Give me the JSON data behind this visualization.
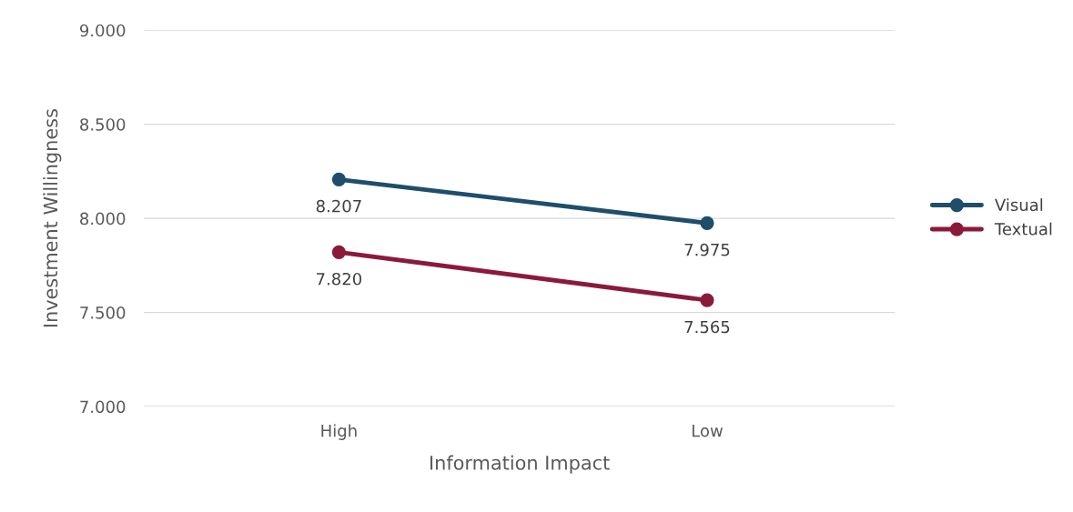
{
  "chart_data": {
    "type": "line",
    "xlabel": "Information Impact",
    "ylabel": "Investment Willingness",
    "categories": [
      "High",
      "Low"
    ],
    "series": [
      {
        "name": "Visual",
        "color": "#1f4e6b",
        "values": [
          8.207,
          7.975
        ],
        "value_labels": [
          "8.207",
          "7.975"
        ]
      },
      {
        "name": "Textual",
        "color": "#8b1a3a",
        "values": [
          7.82,
          7.565
        ],
        "value_labels": [
          "7.820",
          "7.565"
        ]
      }
    ],
    "ylim": [
      7,
      9
    ],
    "yticks": [
      {
        "value": 7,
        "label": "7.000"
      },
      {
        "value": 7.5,
        "label": "7.500"
      },
      {
        "value": 8,
        "label": "8.000"
      },
      {
        "value": 8.5,
        "label": "8.500"
      },
      {
        "value": 9,
        "label": "9.000"
      }
    ],
    "grid": "y",
    "legend": "right",
    "marker": "circle",
    "line_style": "solid"
  }
}
